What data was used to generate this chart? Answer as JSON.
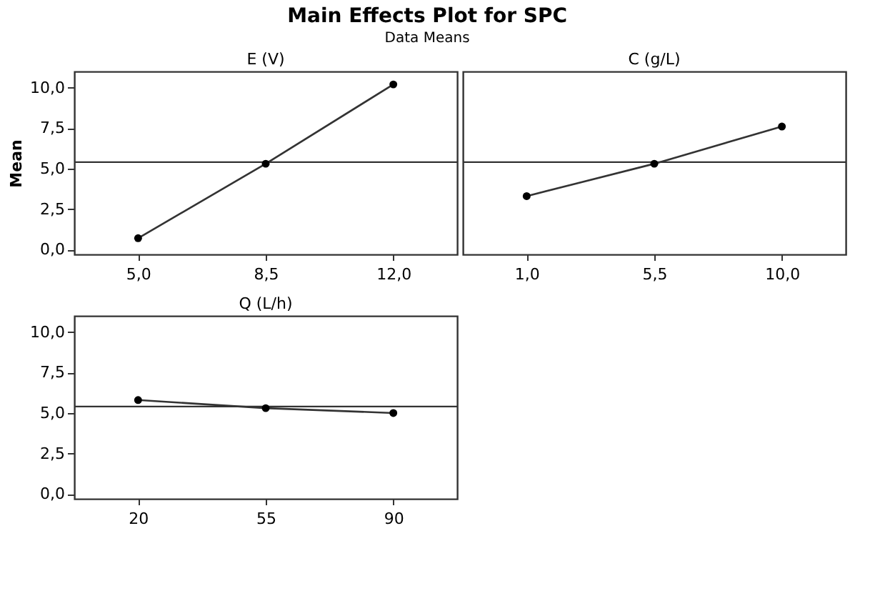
{
  "chart_data": [
    {
      "type": "line",
      "title": "Main Effects Plot for SPC",
      "subtitle": "Data Means",
      "annotations": [
        "E (V)"
      ],
      "ylabel": "Mean",
      "categories": [
        "5,0",
        "8,5",
        "12,0"
      ],
      "series": [
        {
          "color": "#000000",
          "values": [
            0.7,
            5.3,
            10.2
          ]
        }
      ],
      "ylim": [
        -0.3,
        11
      ],
      "yticks": [
        {
          "value": 0,
          "label": "0,0"
        },
        {
          "value": 2.5,
          "label": "2,5"
        },
        {
          "value": 5,
          "label": "5,0"
        },
        {
          "value": 7.5,
          "label": "7,5"
        },
        {
          "value": 10,
          "label": "10,0"
        }
      ],
      "ref_lines": [
        {
          "axis": "y",
          "value": 5.4,
          "color": "#333333"
        }
      ],
      "marker": "circle",
      "grid": false,
      "legend": false
    },
    {
      "type": "line",
      "annotations": [
        "C (g/L)"
      ],
      "categories": [
        "1,0",
        "5,5",
        "10,0"
      ],
      "series": [
        {
          "color": "#000000",
          "values": [
            3.3,
            5.3,
            7.6
          ]
        }
      ],
      "ylim": [
        -0.3,
        11
      ],
      "tick_labels": "x",
      "ref_lines": [
        {
          "axis": "y",
          "value": 5.4,
          "color": "#333333"
        }
      ],
      "marker": "circle",
      "grid": false,
      "legend": false
    },
    {
      "type": "line",
      "annotations": [
        "Q (L/h)"
      ],
      "categories": [
        "20",
        "55",
        "90"
      ],
      "series": [
        {
          "color": "#000000",
          "values": [
            5.8,
            5.3,
            5.0
          ]
        }
      ],
      "ylim": [
        -0.3,
        11
      ],
      "yticks": [
        {
          "value": 0,
          "label": "0,0"
        },
        {
          "value": 2.5,
          "label": "2,5"
        },
        {
          "value": 5,
          "label": "5,0"
        },
        {
          "value": 7.5,
          "label": "7,5"
        },
        {
          "value": 10,
          "label": "10,0"
        }
      ],
      "ref_lines": [
        {
          "axis": "y",
          "value": 5.4,
          "color": "#333333"
        }
      ],
      "marker": "circle",
      "grid": false,
      "legend": false
    }
  ]
}
